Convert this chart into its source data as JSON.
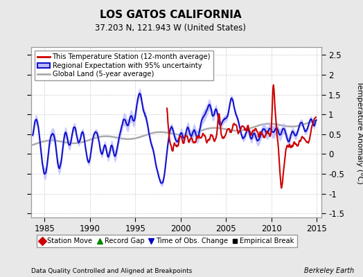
{
  "title": "LOS GATOS CALIFORNIA",
  "subtitle": "37.203 N, 121.943 W (United States)",
  "ylabel": "Temperature Anomaly (°C)",
  "xlabel_left": "Data Quality Controlled and Aligned at Breakpoints",
  "xlabel_right": "Berkeley Earth",
  "xlim": [
    1983.5,
    2015.5
  ],
  "ylim": [
    -1.6,
    2.7
  ],
  "yticks": [
    -1.5,
    -1.0,
    -0.5,
    0.0,
    0.5,
    1.0,
    1.5,
    2.0,
    2.5
  ],
  "xticks": [
    1985,
    1990,
    1995,
    2000,
    2005,
    2010,
    2015
  ],
  "bg_color": "#e8e8e8",
  "plot_bg_color": "#ffffff",
  "station_color": "#cc0000",
  "regional_color": "#1111cc",
  "regional_fill_color": "#bbbbff",
  "global_color": "#aaaaaa",
  "legend_items": [
    {
      "label": "This Temperature Station (12-month average)",
      "color": "#cc0000"
    },
    {
      "label": "Regional Expectation with 95% uncertainty",
      "color": "#1111cc"
    },
    {
      "label": "Global Land (5-year average)",
      "color": "#aaaaaa"
    }
  ],
  "marker_items": [
    {
      "label": "Station Move",
      "color": "#cc0000",
      "marker": "D"
    },
    {
      "label": "Record Gap",
      "color": "#008800",
      "marker": "^"
    },
    {
      "label": "Time of Obs. Change",
      "color": "#0000cc",
      "marker": "v"
    },
    {
      "label": "Empirical Break",
      "color": "#000000",
      "marker": "s"
    }
  ]
}
